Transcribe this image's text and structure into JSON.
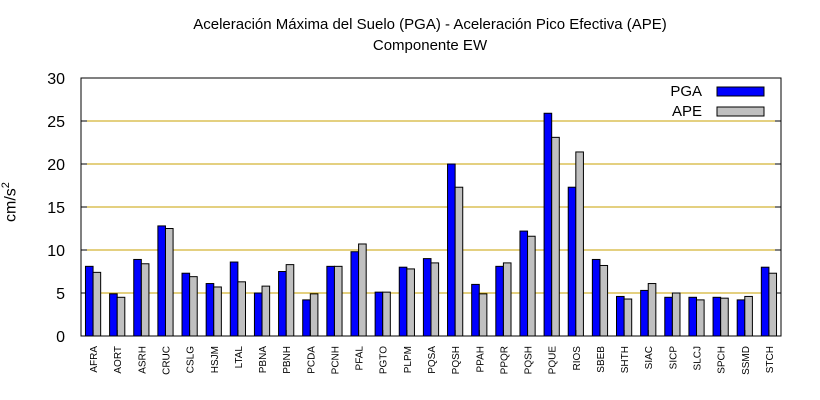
{
  "chart_data": {
    "type": "bar",
    "title": "Aceleración Máxima del Suelo (PGA) -  Aceleración Pico Efectiva (APE)",
    "subtitle": "Componente EW",
    "xlabel": "",
    "ylabel": "cm/s",
    "ylabel_exponent": "2",
    "ylim": [
      0,
      30
    ],
    "yticks": [
      0,
      5,
      10,
      15,
      20,
      25,
      30
    ],
    "grid": true,
    "legend_position": "top-right",
    "categories": [
      "AFRA",
      "AORT",
      "ASRH",
      "CRUC",
      "CSLG",
      "HSJM",
      "LTAL",
      "PBNA",
      "PBNH",
      "PCDA",
      "PCNH",
      "PFAL",
      "PGTO",
      "PLPM",
      "PQSA",
      "PQSH",
      "PPAH",
      "PPQR",
      "PQSH",
      "PQUE",
      "RIOS",
      "SBEB",
      "SHTH",
      "SIAC",
      "SICP",
      "SLCJ",
      "SPCH",
      "SSMD",
      "STCH"
    ],
    "series": [
      {
        "name": "PGA",
        "color": "#0000ff",
        "values": [
          8.1,
          4.9,
          8.9,
          12.8,
          7.3,
          6.1,
          8.6,
          5.0,
          7.5,
          4.2,
          8.1,
          9.8,
          5.1,
          8.0,
          9.0,
          20.0,
          6.0,
          8.1,
          12.2,
          25.9,
          17.3,
          8.9,
          4.6,
          5.3,
          4.5,
          4.5,
          4.5,
          4.2,
          8.0
        ]
      },
      {
        "name": "APE",
        "color": "#c0c0c0",
        "values": [
          7.4,
          4.5,
          8.4,
          12.5,
          6.9,
          5.7,
          6.3,
          5.8,
          8.3,
          4.9,
          8.1,
          10.7,
          5.1,
          7.8,
          8.5,
          17.3,
          4.9,
          8.5,
          11.6,
          23.1,
          21.4,
          8.2,
          4.3,
          6.1,
          5.0,
          4.2,
          4.4,
          4.6,
          7.3
        ]
      }
    ]
  }
}
